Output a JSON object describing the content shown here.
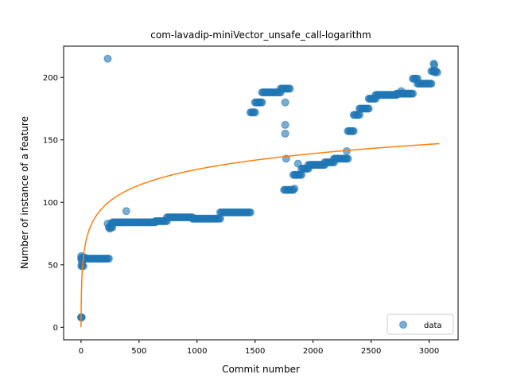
{
  "chart_data": {
    "type": "scatter",
    "title": "com-lavadip-miniVector_unsafe_call-logarithm",
    "xlabel": "Commit number",
    "ylabel": "Number of instance of a feature",
    "xlim": [
      -150,
      3250
    ],
    "ylim": [
      -10,
      225
    ],
    "xticks": [
      0,
      500,
      1000,
      1500,
      2000,
      2500,
      3000
    ],
    "yticks": [
      0,
      50,
      100,
      150,
      200
    ],
    "legend_position": "lower right",
    "colors": {
      "data": "#1f77b4",
      "fit": "#ff7f0e"
    },
    "series": [
      {
        "name": "data",
        "kind": "scatter",
        "segments": [
          {
            "x_start": 0,
            "x_end": 6,
            "y": 8
          },
          {
            "x_start": 3,
            "x_end": 20,
            "y": 49
          },
          {
            "x_start": 10,
            "x_end": 30,
            "y": 56
          },
          {
            "x_start": 30,
            "x_end": 240,
            "y": 55
          },
          {
            "x_start": 240,
            "x_end": 270,
            "y": 80
          },
          {
            "x_start": 270,
            "x_end": 640,
            "y": 84
          },
          {
            "x_start": 640,
            "x_end": 740,
            "y": 85
          },
          {
            "x_start": 740,
            "x_end": 960,
            "y": 88
          },
          {
            "x_start": 960,
            "x_end": 1200,
            "y": 87
          },
          {
            "x_start": 1200,
            "x_end": 1460,
            "y": 92
          },
          {
            "x_start": 1460,
            "x_end": 1500,
            "y": 172
          },
          {
            "x_start": 1500,
            "x_end": 1560,
            "y": 180
          },
          {
            "x_start": 1560,
            "x_end": 1720,
            "y": 188
          },
          {
            "x_start": 1720,
            "x_end": 1800,
            "y": 191
          },
          {
            "x_start": 1750,
            "x_end": 1830,
            "y": 110
          },
          {
            "x_start": 1830,
            "x_end": 1900,
            "y": 122
          },
          {
            "x_start": 1900,
            "x_end": 1960,
            "y": 127
          },
          {
            "x_start": 1960,
            "x_end": 2100,
            "y": 130
          },
          {
            "x_start": 2100,
            "x_end": 2180,
            "y": 132
          },
          {
            "x_start": 2180,
            "x_end": 2300,
            "y": 135
          },
          {
            "x_start": 2300,
            "x_end": 2350,
            "y": 157
          },
          {
            "x_start": 2350,
            "x_end": 2400,
            "y": 170
          },
          {
            "x_start": 2400,
            "x_end": 2480,
            "y": 175
          },
          {
            "x_start": 2480,
            "x_end": 2540,
            "y": 183
          },
          {
            "x_start": 2540,
            "x_end": 2720,
            "y": 186
          },
          {
            "x_start": 2720,
            "x_end": 2860,
            "y": 187
          },
          {
            "x_start": 2860,
            "x_end": 2900,
            "y": 199
          },
          {
            "x_start": 2900,
            "x_end": 3020,
            "y": 195
          },
          {
            "x_start": 3020,
            "x_end": 3060,
            "y": 205
          }
        ],
        "points": [
          [
            1,
            55
          ],
          [
            2,
            57
          ],
          [
            5,
            54
          ],
          [
            8,
            51
          ],
          [
            230,
            215
          ],
          [
            230,
            83
          ],
          [
            248,
            79
          ],
          [
            262,
            83
          ],
          [
            390,
            93
          ],
          [
            1760,
            180
          ],
          [
            1760,
            162
          ],
          [
            1760,
            155
          ],
          [
            1768,
            135
          ],
          [
            1840,
            111
          ],
          [
            1870,
            131
          ],
          [
            2290,
            141
          ],
          [
            2760,
            189
          ],
          [
            3040,
            211
          ],
          [
            3045,
            210
          ],
          [
            3050,
            204
          ],
          [
            3070,
            204
          ]
        ]
      },
      {
        "name": "fit",
        "kind": "line",
        "x_range": [
          0,
          3090
        ],
        "y_end": 147
      }
    ],
    "legend": [
      {
        "label": "data"
      }
    ]
  }
}
